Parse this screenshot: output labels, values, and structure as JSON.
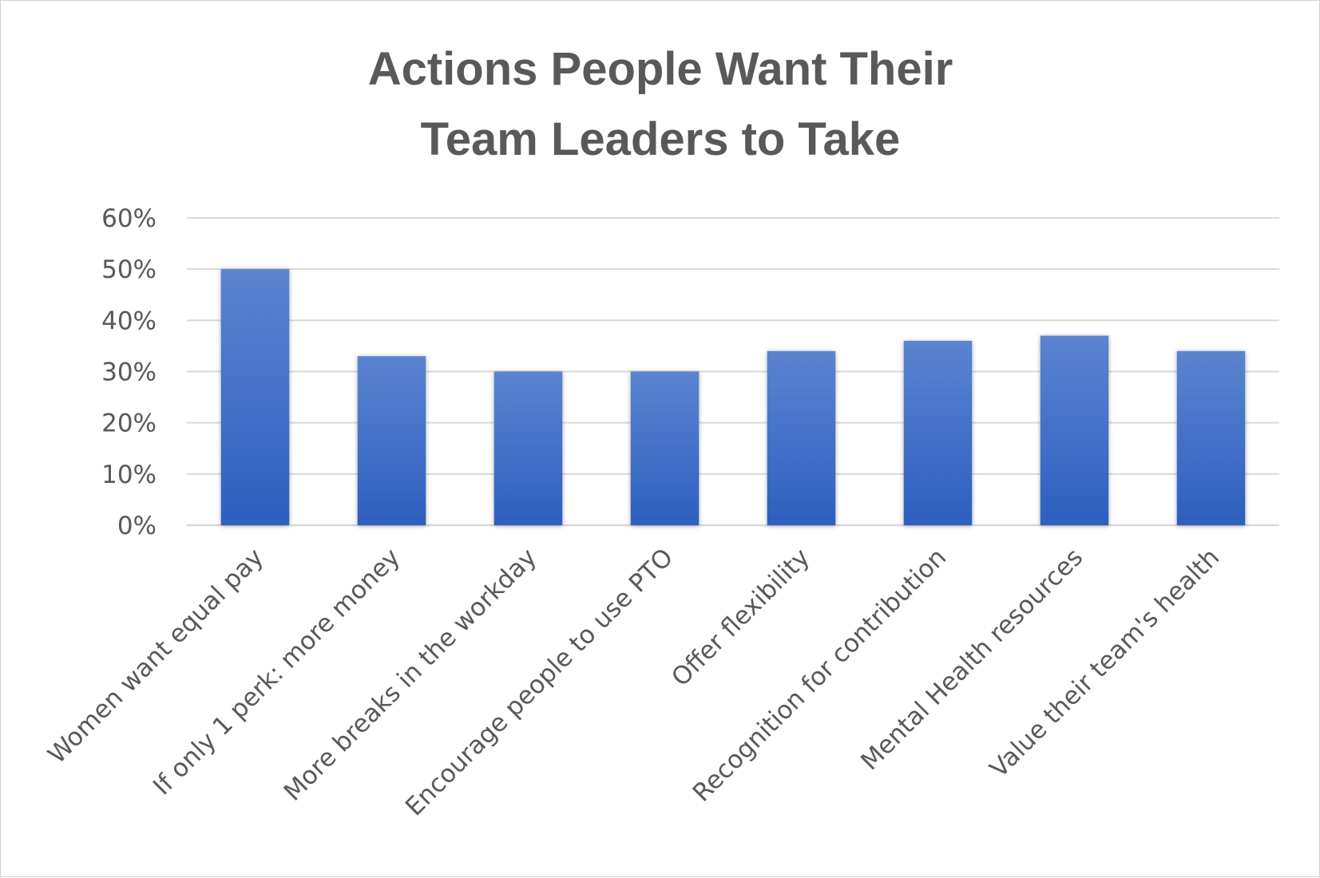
{
  "chart_data": {
    "type": "bar",
    "title_lines": [
      "Actions People Want Their",
      "Team Leaders to Take"
    ],
    "categories": [
      "Women want equal pay",
      "If only 1 perk: more money",
      "More breaks in the workday",
      "Encourage people to use PTO",
      "Offer flexibility",
      "Recognition for contribution",
      "Mental Health resources",
      "Value their team's health"
    ],
    "values": [
      50,
      33,
      30,
      30,
      34,
      36,
      37,
      34
    ],
    "ylim": [
      0,
      60
    ],
    "yticks": [
      0,
      10,
      20,
      30,
      40,
      50,
      60
    ],
    "ytick_labels": [
      "0%",
      "10%",
      "20%",
      "30%",
      "40%",
      "50%",
      "60%"
    ],
    "grid": true,
    "legend": "none",
    "colors": {
      "bar_top": "#5b84d0",
      "bar_bottom": "#2d5fbf",
      "grid": "#d9d9d9",
      "text": "#595959"
    }
  }
}
